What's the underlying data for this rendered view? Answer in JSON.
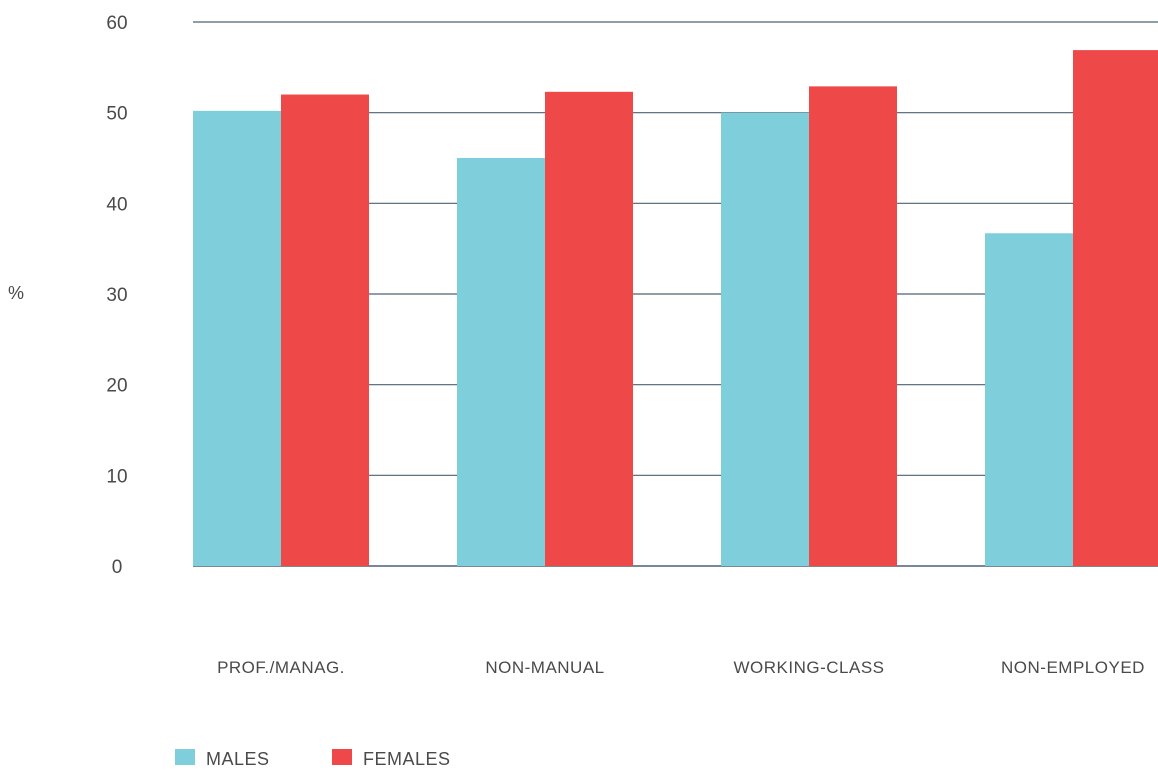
{
  "chart_data": {
    "type": "bar",
    "title": "",
    "xlabel": "",
    "ylabel": "%",
    "ylim": [
      0,
      60
    ],
    "yticks": [
      0,
      10,
      20,
      30,
      40,
      50,
      60
    ],
    "grid": true,
    "legend_position": "bottom-left",
    "categories": [
      "PROF./MANAG.",
      "NON-MANUAL",
      "WORKING-CLASS",
      "NON-EMPLOYED"
    ],
    "series": [
      {
        "name": "MALES",
        "color": "#7ecfdb",
        "values": [
          50.2,
          45.0,
          50.0,
          36.7
        ]
      },
      {
        "name": "FEMALES",
        "color": "#ef4848",
        "values": [
          52.0,
          52.3,
          52.9,
          56.9
        ]
      }
    ],
    "gridline_color": "#4d6070",
    "text_color": "#4a4a4a"
  }
}
